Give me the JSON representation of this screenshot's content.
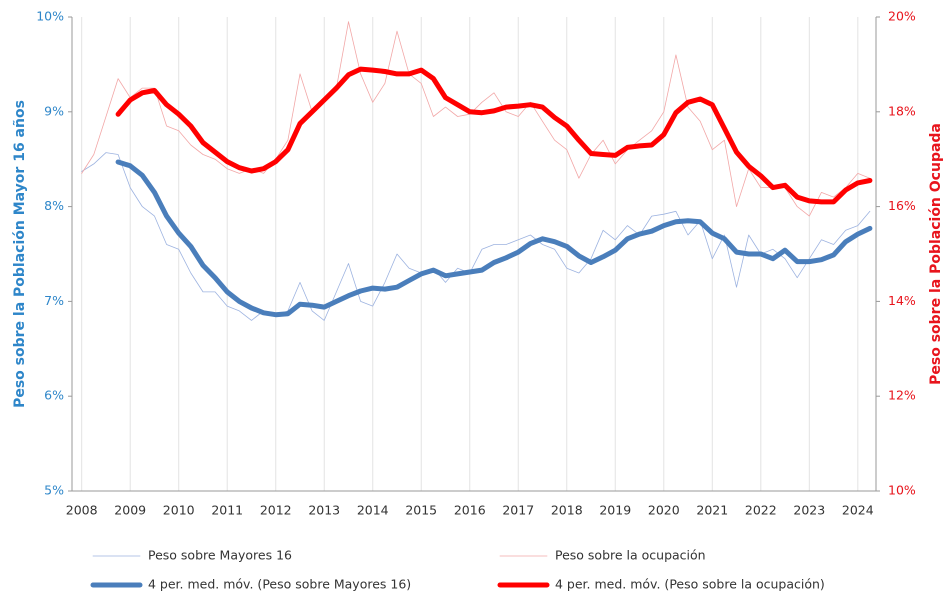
{
  "chart_data": {
    "type": "line",
    "ylabel": "Peso sobre la Población Mayor 16 años",
    "y2label": "Peso sobre la Población Ocupada",
    "x": [
      2008,
      2008.25,
      2008.5,
      2008.75,
      2009,
      2009.25,
      2009.5,
      2009.75,
      2010,
      2010.25,
      2010.5,
      2010.75,
      2011,
      2011.25,
      2011.5,
      2011.75,
      2012,
      2012.25,
      2012.5,
      2012.75,
      2013,
      2013.25,
      2013.5,
      2013.75,
      2014,
      2014.25,
      2014.5,
      2014.75,
      2015,
      2015.25,
      2015.5,
      2015.75,
      2016,
      2016.25,
      2016.5,
      2016.75,
      2017,
      2017.25,
      2017.5,
      2017.75,
      2018,
      2018.25,
      2018.5,
      2018.75,
      2019,
      2019.25,
      2019.5,
      2019.75,
      2020,
      2020.25,
      2020.5,
      2020.75,
      2021,
      2021.25,
      2021.5,
      2021.75,
      2022,
      2022.25,
      2022.5,
      2022.75,
      2023,
      2023.25,
      2023.5,
      2023.75,
      2024,
      2024.25
    ],
    "xlim": [
      2007.8,
      2024.375
    ],
    "xticks": [
      2008,
      2009,
      2010,
      2011,
      2012,
      2013,
      2014,
      2015,
      2016,
      2017,
      2018,
      2019,
      2020,
      2021,
      2022,
      2023,
      2024
    ],
    "ylim": [
      5,
      10
    ],
    "yticks": [
      {
        "value": 5,
        "label": "5%"
      },
      {
        "value": 6,
        "label": "6%"
      },
      {
        "value": 7,
        "label": "7%"
      },
      {
        "value": 8,
        "label": "8%"
      },
      {
        "value": 9,
        "label": "9%"
      },
      {
        "value": 10,
        "label": "10%"
      }
    ],
    "y2lim": [
      10,
      20
    ],
    "y2ticks": [
      {
        "value": 10,
        "label": "10%"
      },
      {
        "value": 12,
        "label": "12%"
      },
      {
        "value": 14,
        "label": "14%"
      },
      {
        "value": 16,
        "label": "16%"
      },
      {
        "value": 18,
        "label": "18%"
      },
      {
        "value": 20,
        "label": "20%"
      }
    ],
    "grid": true,
    "series": [
      {
        "name": "Peso sobre Mayores 16",
        "color": "#9db3e0",
        "width": 0.8,
        "values": [
          8.37,
          8.45,
          8.57,
          8.55,
          8.2,
          8.0,
          7.9,
          7.6,
          7.55,
          7.3,
          7.1,
          7.1,
          6.95,
          6.9,
          6.8,
          6.9,
          6.85,
          6.9,
          7.2,
          6.9,
          6.8,
          7.1,
          7.4,
          7.0,
          6.95,
          7.2,
          7.5,
          7.35,
          7.3,
          7.35,
          7.2,
          7.35,
          7.3,
          7.55,
          7.6,
          7.6,
          7.65,
          7.7,
          7.6,
          7.55,
          7.35,
          7.3,
          7.45,
          7.75,
          7.65,
          7.8,
          7.7,
          7.9,
          7.92,
          7.95,
          7.7,
          7.85,
          7.45,
          7.7,
          7.15,
          7.7,
          7.5,
          7.55,
          7.45,
          7.25,
          7.45,
          7.65,
          7.6,
          7.75,
          7.8,
          7.95
        ]
      },
      {
        "name": "Peso sobre la ocupación",
        "color": "#f2a7a7",
        "width": 0.8,
        "axis": "y2",
        "values": [
          16.7,
          17.1,
          17.9,
          18.7,
          18.3,
          18.5,
          18.5,
          17.7,
          17.6,
          17.3,
          17.1,
          17.0,
          16.8,
          16.7,
          16.8,
          16.7,
          17.0,
          17.4,
          18.8,
          18.0,
          18.3,
          18.5,
          19.9,
          18.8,
          18.2,
          18.6,
          19.7,
          18.8,
          18.6,
          17.9,
          18.1,
          17.9,
          17.95,
          18.2,
          18.4,
          18.0,
          17.9,
          18.2,
          17.8,
          17.4,
          17.2,
          16.6,
          17.1,
          17.4,
          16.9,
          17.2,
          17.4,
          17.6,
          18.0,
          19.2,
          18.1,
          17.8,
          17.2,
          17.4,
          16.0,
          16.8,
          16.4,
          16.4,
          16.4,
          16.0,
          15.8,
          16.3,
          16.2,
          16.4,
          16.7,
          16.6
        ]
      },
      {
        "name": "4 per. med. móv. (Peso sobre Mayores 16)",
        "color": "#4a7ebb",
        "width": 5,
        "values": [
          null,
          null,
          null,
          8.47,
          8.43,
          8.33,
          8.15,
          7.9,
          7.72,
          7.58,
          7.38,
          7.25,
          7.1,
          7.0,
          6.93,
          6.88,
          6.86,
          6.87,
          6.97,
          6.96,
          6.94,
          7.0,
          7.06,
          7.11,
          7.14,
          7.13,
          7.15,
          7.22,
          7.29,
          7.33,
          7.27,
          7.29,
          7.31,
          7.33,
          7.41,
          7.46,
          7.52,
          7.61,
          7.66,
          7.63,
          7.58,
          7.48,
          7.41,
          7.47,
          7.54,
          7.66,
          7.71,
          7.74,
          7.8,
          7.84,
          7.85,
          7.84,
          7.72,
          7.66,
          7.52,
          7.5,
          7.5,
          7.45,
          7.54,
          7.42,
          7.42,
          7.44,
          7.49,
          7.63,
          7.71,
          7.77
        ]
      },
      {
        "name": "4 per. med. móv. (Peso sobre la ocupación)",
        "color": "#ff0000",
        "width": 5,
        "axis": "y2",
        "values": [
          null,
          null,
          null,
          17.95,
          18.25,
          18.4,
          18.45,
          18.15,
          17.95,
          17.7,
          17.35,
          17.15,
          16.95,
          16.82,
          16.75,
          16.8,
          16.95,
          17.2,
          17.75,
          18.0,
          18.25,
          18.5,
          18.78,
          18.9,
          18.88,
          18.85,
          18.8,
          18.8,
          18.88,
          18.7,
          18.3,
          18.15,
          18.0,
          17.98,
          18.02,
          18.1,
          18.12,
          18.15,
          18.1,
          17.88,
          17.7,
          17.4,
          17.12,
          17.1,
          17.08,
          17.25,
          17.28,
          17.3,
          17.52,
          17.98,
          18.2,
          18.27,
          18.15,
          17.65,
          17.15,
          16.85,
          16.65,
          16.4,
          16.45,
          16.2,
          16.12,
          16.1,
          16.1,
          16.35,
          16.5,
          16.55
        ]
      }
    ]
  }
}
